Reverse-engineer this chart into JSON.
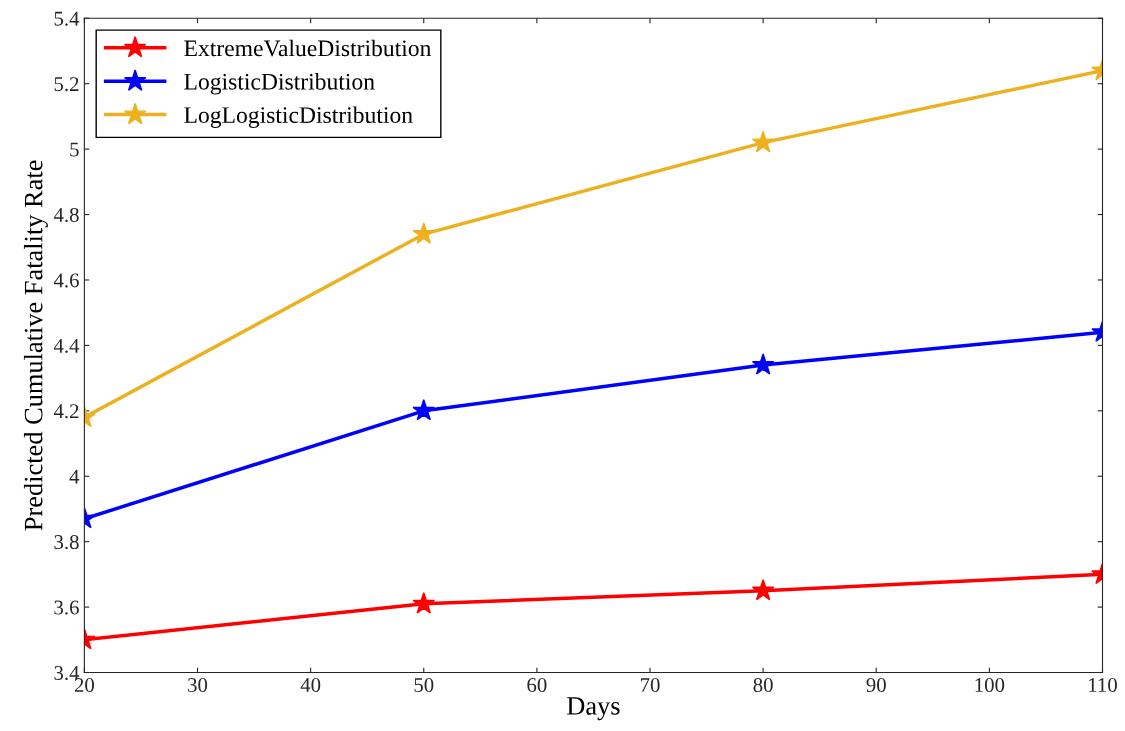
{
  "chart_data": {
    "type": "line",
    "xlabel": "Days",
    "ylabel": "Predicted Cumulative Fatality Rate",
    "x": [
      20,
      50,
      80,
      110
    ],
    "series": [
      {
        "name": "ExtremeValueDistribution",
        "color": "#ff0000",
        "values": [
          3.5,
          3.61,
          3.65,
          3.7
        ]
      },
      {
        "name": "LogisticDistribution",
        "color": "#0000ff",
        "values": [
          3.87,
          4.2,
          4.34,
          4.44
        ]
      },
      {
        "name": "LogLogisticDistribution",
        "color": "#edb120",
        "values": [
          4.18,
          4.74,
          5.02,
          5.24
        ]
      }
    ],
    "xlim": [
      20,
      110
    ],
    "xticks": [
      20,
      30,
      40,
      50,
      60,
      70,
      80,
      90,
      100,
      110
    ],
    "ylim": [
      3.4,
      5.4
    ],
    "yticks": [
      3.4,
      3.6,
      3.8,
      {
        "value": 4,
        "label": "4"
      },
      4.2,
      4.4,
      4.6,
      4.8,
      {
        "value": 5,
        "label": "5"
      },
      5.2,
      5.4
    ],
    "grid": false,
    "legend": "top left",
    "marker": "star",
    "line_style": "solid"
  }
}
